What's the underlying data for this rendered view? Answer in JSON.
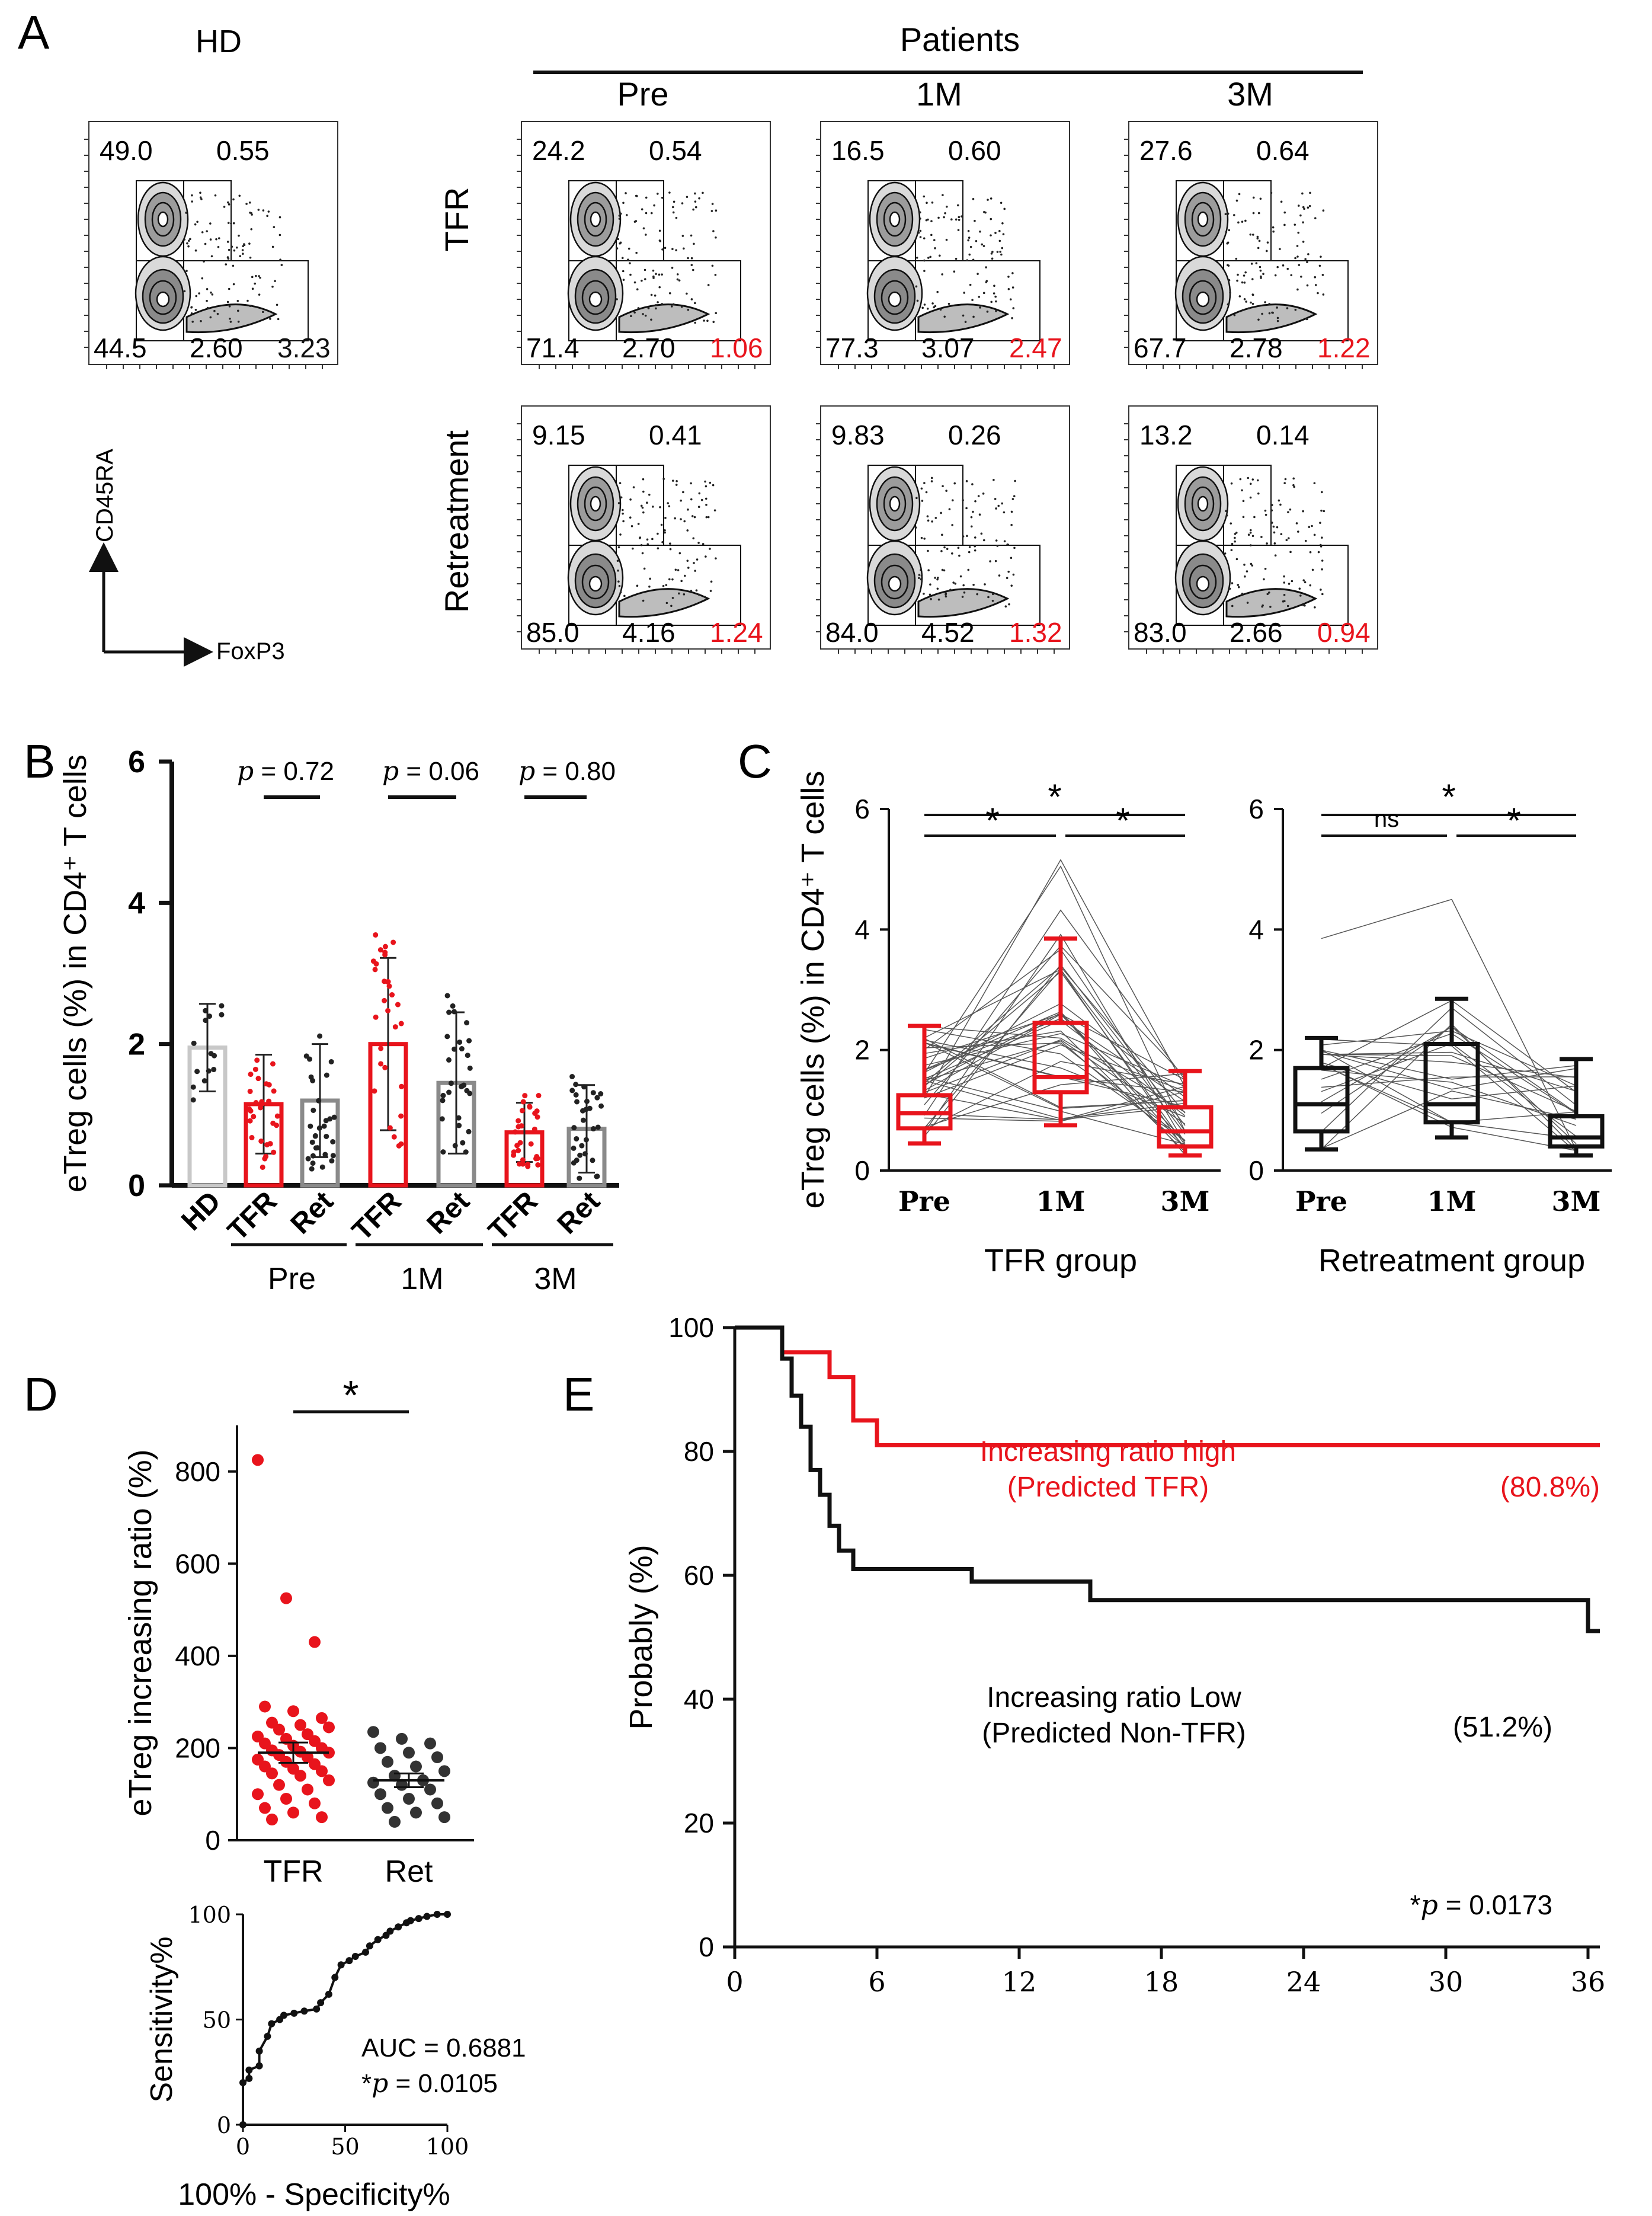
{
  "colors": {
    "red": "#e8141c",
    "black": "#111111",
    "gray_light": "#c8c8c8",
    "gray_mid": "#8a8a8a"
  },
  "panels": {
    "a": "A",
    "b": "B",
    "c": "C",
    "d": "D",
    "e": "E"
  },
  "panel_a": {
    "hd_label": "HD",
    "patients_label": "Patients",
    "col_labels": [
      "Pre",
      "1M",
      "3M"
    ],
    "row_labels": [
      "TFR",
      "Retreatment"
    ],
    "x_axis": "FoxP3",
    "y_axis": "CD45RA",
    "hd": {
      "q1": "49.0",
      "q2": "0.55",
      "q3": "44.5",
      "q4": "2.60",
      "q5": "3.23"
    },
    "plots": [
      {
        "q1": "24.2",
        "q2": "0.54",
        "q3": "71.4",
        "q4": "2.70",
        "q5": "1.06"
      },
      {
        "q1": "16.5",
        "q2": "0.60",
        "q3": "77.3",
        "q4": "3.07",
        "q5": "2.47"
      },
      {
        "q1": "27.6",
        "q2": "0.64",
        "q3": "67.7",
        "q4": "2.78",
        "q5": "1.22"
      },
      {
        "q1": "9.15",
        "q2": "0.41",
        "q3": "85.0",
        "q4": "4.16",
        "q5": "1.24"
      },
      {
        "q1": "9.83",
        "q2": "0.26",
        "q3": "84.0",
        "q4": "4.52",
        "q5": "1.32"
      },
      {
        "q1": "13.2",
        "q2": "0.14",
        "q3": "83.0",
        "q4": "2.66",
        "q5": "0.94"
      }
    ]
  },
  "chart_data": [
    {
      "id": "B",
      "type": "bar",
      "ylabel": "eTreg cells (%) in CD4⁺ T cells",
      "ylim": [
        0,
        6
      ],
      "yticks": [
        "0",
        "2",
        "4",
        "6"
      ],
      "categories": [
        "HD",
        "TFR",
        "Ret",
        "TFR",
        "Ret",
        "TFR",
        "Ret"
      ],
      "groups": [
        "Pre",
        "1M",
        "3M"
      ],
      "means": [
        1.95,
        1.15,
        1.2,
        2.0,
        1.45,
        0.75,
        0.8
      ],
      "sd": [
        0.62,
        0.7,
        0.8,
        1.22,
        1.0,
        0.42,
        0.62
      ],
      "pvalues": [
        {
          "p": "p",
          "value": "= 0.72"
        },
        {
          "p": "p",
          "value": "= 0.06"
        },
        {
          "p": "p",
          "value": "= 0.80"
        }
      ]
    },
    {
      "id": "C",
      "type": "box",
      "ylabel": "eTreg cells (%) in CD4⁺ T cells",
      "ylim": [
        0,
        6
      ],
      "yticks": [
        "0",
        "2",
        "4",
        "6"
      ],
      "categories": [
        "Pre",
        "1M",
        "3M"
      ],
      "groups": [
        {
          "name": "TFR group",
          "boxes": [
            {
              "min": 0.45,
              "q1": 0.7,
              "median": 0.95,
              "q3": 1.25,
              "max": 2.4
            },
            {
              "min": 0.75,
              "q1": 1.3,
              "median": 1.55,
              "q3": 2.45,
              "max": 3.85
            },
            {
              "min": 0.25,
              "q1": 0.4,
              "median": 0.65,
              "q3": 1.05,
              "max": 1.65
            }
          ],
          "sig": [
            "*",
            "*",
            "*"
          ]
        },
        {
          "name": "Retreatment group",
          "boxes": [
            {
              "min": 0.35,
              "q1": 0.65,
              "median": 1.1,
              "q3": 1.7,
              "max": 2.2
            },
            {
              "min": 0.55,
              "q1": 0.8,
              "median": 1.1,
              "q3": 2.1,
              "max": 2.85
            },
            {
              "min": 0.25,
              "q1": 0.4,
              "median": 0.55,
              "q3": 0.9,
              "max": 1.85
            }
          ],
          "sig": [
            "ns",
            "*",
            "*"
          ]
        }
      ]
    },
    {
      "id": "D",
      "type": "scatter",
      "ylabel": "eTreg increasing ratio (%)",
      "ylim": [
        0,
        900
      ],
      "yticks": [
        "0",
        "200",
        "400",
        "600",
        "800"
      ],
      "categories": [
        "TFR",
        "Ret"
      ],
      "means": [
        190,
        130
      ],
      "sem": [
        22,
        15
      ],
      "sig": "*",
      "tfr_values": [
        825,
        525,
        430,
        290,
        280,
        265,
        255,
        250,
        245,
        240,
        230,
        225,
        220,
        215,
        210,
        205,
        200,
        195,
        192,
        190,
        185,
        180,
        175,
        170,
        165,
        160,
        155,
        150,
        145,
        140,
        130,
        120,
        110,
        100,
        90,
        80,
        70,
        60,
        50,
        45
      ],
      "ret_values": [
        235,
        220,
        210,
        200,
        190,
        180,
        170,
        160,
        150,
        140,
        130,
        125,
        120,
        110,
        100,
        90,
        80,
        70,
        60,
        50,
        40
      ]
    },
    {
      "id": "D-roc",
      "type": "line",
      "xlabel": "100% - Specificity%",
      "ylabel": "Sensitivity%",
      "xlim": [
        0,
        100
      ],
      "ylim": [
        0,
        100
      ],
      "xticks": [
        "0",
        "50",
        "100"
      ],
      "yticks": [
        "0",
        "50",
        "100"
      ],
      "auc": "AUC = 0.6881",
      "pval": "= 0.0105",
      "x": [
        0,
        0,
        3,
        3,
        8,
        8,
        12,
        14,
        18,
        20,
        25,
        30,
        36,
        38,
        42,
        45,
        48,
        52,
        55,
        60,
        62,
        66,
        70,
        72,
        76,
        80,
        82,
        86,
        90,
        95,
        100
      ],
      "y": [
        0,
        20,
        22,
        26,
        28,
        35,
        42,
        48,
        50,
        52,
        53,
        54,
        55,
        58,
        62,
        70,
        76,
        78,
        80,
        82,
        85,
        88,
        90,
        92,
        94,
        96,
        97,
        98,
        99,
        100,
        100
      ]
    },
    {
      "id": "E",
      "type": "line",
      "ylabel": "Probably (%)",
      "xlim": [
        0,
        36.5
      ],
      "ylim": [
        0,
        100
      ],
      "xticks": [
        "0",
        "6",
        "12",
        "18",
        "24",
        "30",
        "36"
      ],
      "yticks": [
        "0",
        "20",
        "40",
        "60",
        "80",
        "100"
      ],
      "series": [
        {
          "name": "Increasing ratio high",
          "sub": "(Predicted TFR)",
          "end_label": "(80.8%)",
          "color": "#e8141c",
          "x": [
            0,
            2,
            2,
            4,
            4,
            5,
            5,
            6,
            6,
            36.5
          ],
          "y": [
            100,
            100,
            96,
            96,
            92,
            92,
            85,
            85,
            81,
            81
          ]
        },
        {
          "name": "Increasing ratio Low",
          "sub": "(Predicted Non-TFR)",
          "end_label": "(51.2%)",
          "color": "#111111",
          "x": [
            0,
            2,
            2,
            2.4,
            2.4,
            2.8,
            2.8,
            3.2,
            3.2,
            3.6,
            3.6,
            4.0,
            4.0,
            4.4,
            4.4,
            5,
            5,
            10,
            10,
            15,
            15,
            36,
            36,
            36.5
          ],
          "y": [
            100,
            100,
            95,
            95,
            89,
            89,
            84,
            84,
            77,
            77,
            73,
            73,
            68,
            68,
            64,
            64,
            61,
            61,
            59,
            59,
            56,
            56,
            51,
            51
          ]
        }
      ],
      "pval": "= 0.0173"
    }
  ]
}
